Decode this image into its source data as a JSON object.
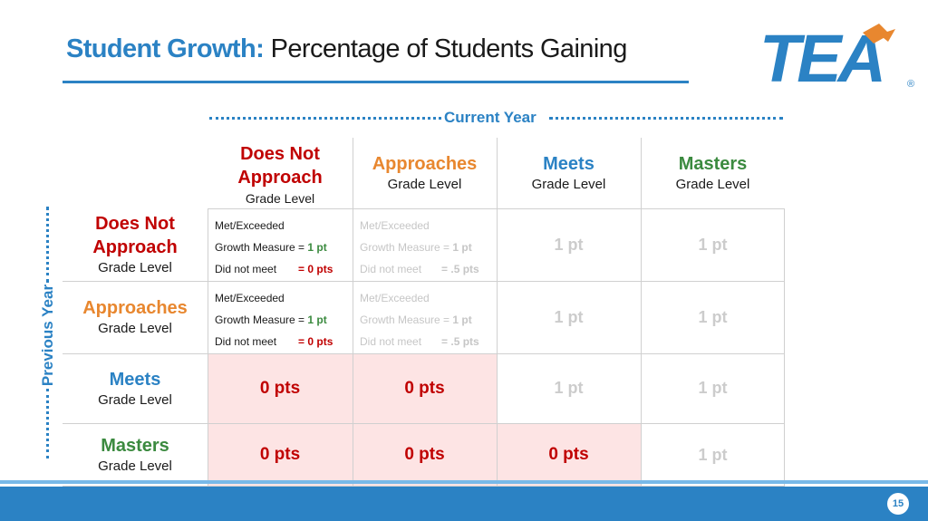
{
  "title": {
    "bold": "Student Growth:",
    "rest": "Percentage of Students Gaining"
  },
  "logo": {
    "text": "TEA",
    "registered": "®"
  },
  "axes": {
    "current_year": "Current Year",
    "previous_year": "Previous Year"
  },
  "grade_level": "Grade Level",
  "levels": [
    {
      "name_line1": "Does Not",
      "name_line2": "Approach",
      "color": "#c00000"
    },
    {
      "name_line1": "Approaches",
      "name_line2": "",
      "color": "#e8872f"
    },
    {
      "name_line1": "Meets",
      "name_line2": "",
      "color": "#2b82c4"
    },
    {
      "name_line1": "Masters",
      "name_line2": "",
      "color": "#3b8a3f"
    }
  ],
  "detail": {
    "met_exceeded": "Met/Exceeded",
    "growth_measure": "Growth Measure =",
    "did_not_meet": "Did not meet",
    "col1_growth_pts": "1 pt",
    "col1_dnm_pts": "= 0 pts",
    "col2_growth_pts": "1 pt",
    "col2_dnm_pts": "= .5 pts"
  },
  "points": {
    "one": "1 pt",
    "zero": "0 pts"
  },
  "page_number": "15",
  "colors": {
    "accent": "#2b82c4",
    "pink_fill": "#fde4e4"
  }
}
